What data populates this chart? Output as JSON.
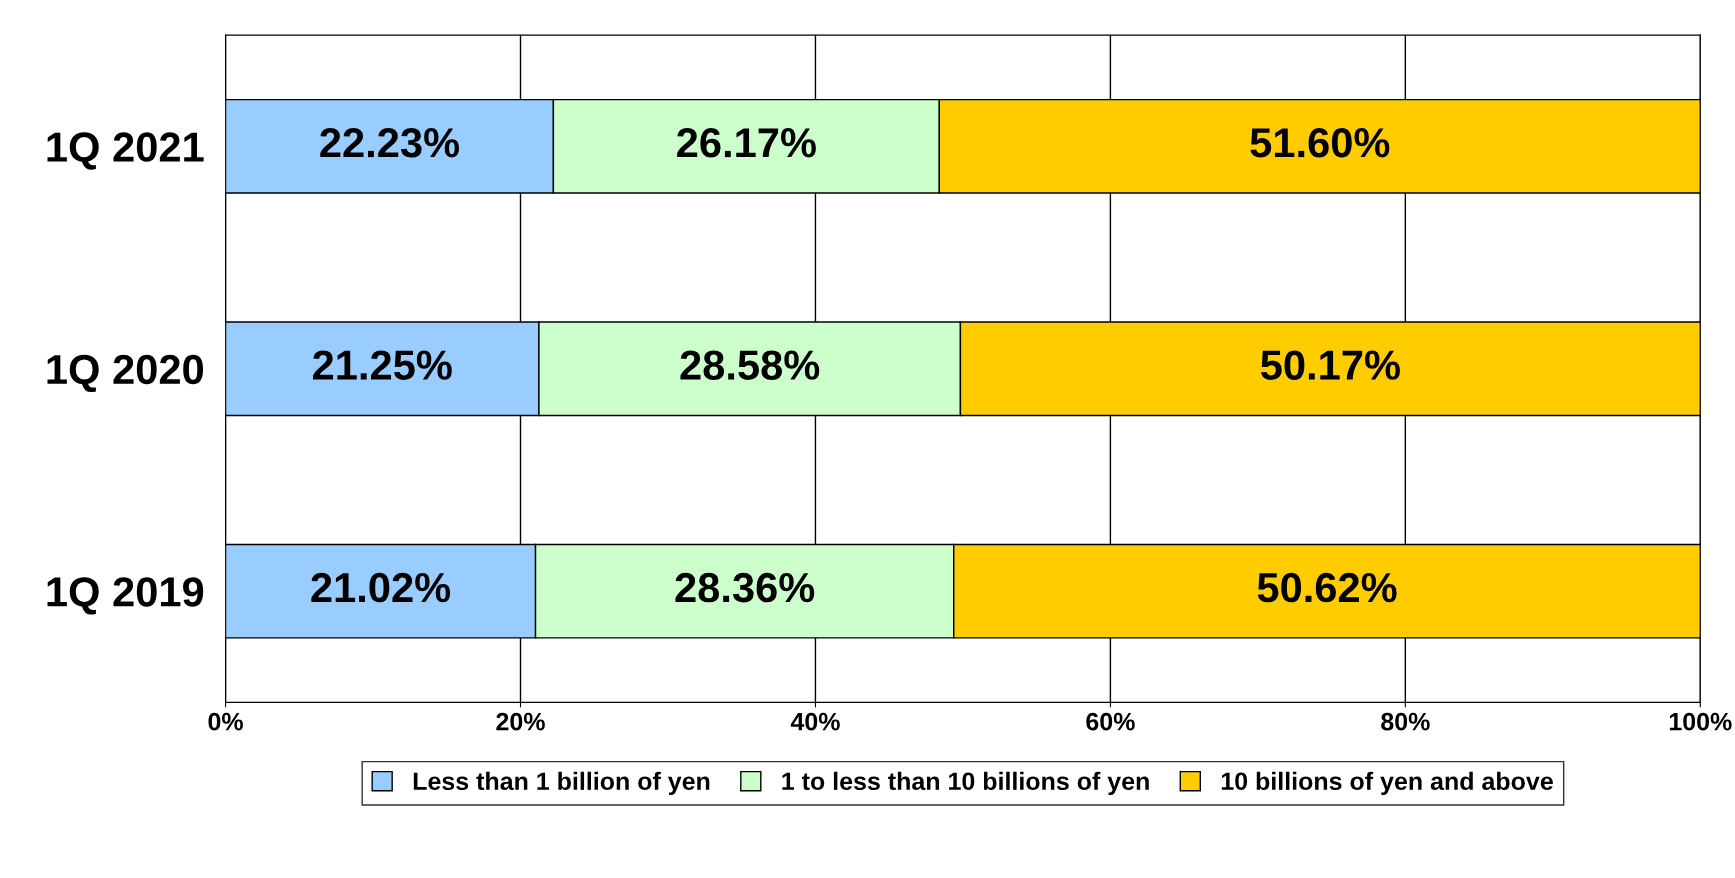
{
  "chart_data": {
    "type": "bar",
    "orientation": "horizontal",
    "stacked": true,
    "categories": [
      "1Q 2021",
      "1Q 2020",
      "1Q 2019"
    ],
    "series": [
      {
        "name": "Less than 1 billion of yen",
        "color": "#99ccff",
        "values": [
          22.23,
          21.25,
          21.02
        ],
        "value_labels": [
          "22.23%",
          "21.25%",
          "21.02%"
        ]
      },
      {
        "name": "1 to less than 10 billions of yen",
        "color": "#ccffcc",
        "values": [
          26.17,
          28.58,
          28.36
        ],
        "value_labels": [
          "26.17%",
          "28.58%",
          "28.36%"
        ]
      },
      {
        "name": "10 billions of yen and above",
        "color": "#ffcc00",
        "values": [
          51.6,
          50.17,
          50.62
        ],
        "value_labels": [
          "51.60%",
          "50.17%",
          "50.62%"
        ]
      }
    ],
    "xlim": [
      0,
      100
    ],
    "xticks": [
      {
        "value": 0,
        "label": "0%"
      },
      {
        "value": 20,
        "label": "20%"
      },
      {
        "value": 40,
        "label": "40%"
      },
      {
        "value": 60,
        "label": "60%"
      },
      {
        "value": 80,
        "label": "80%"
      },
      {
        "value": 100,
        "label": "100%"
      }
    ],
    "grid": "x",
    "legend": "bottom"
  }
}
